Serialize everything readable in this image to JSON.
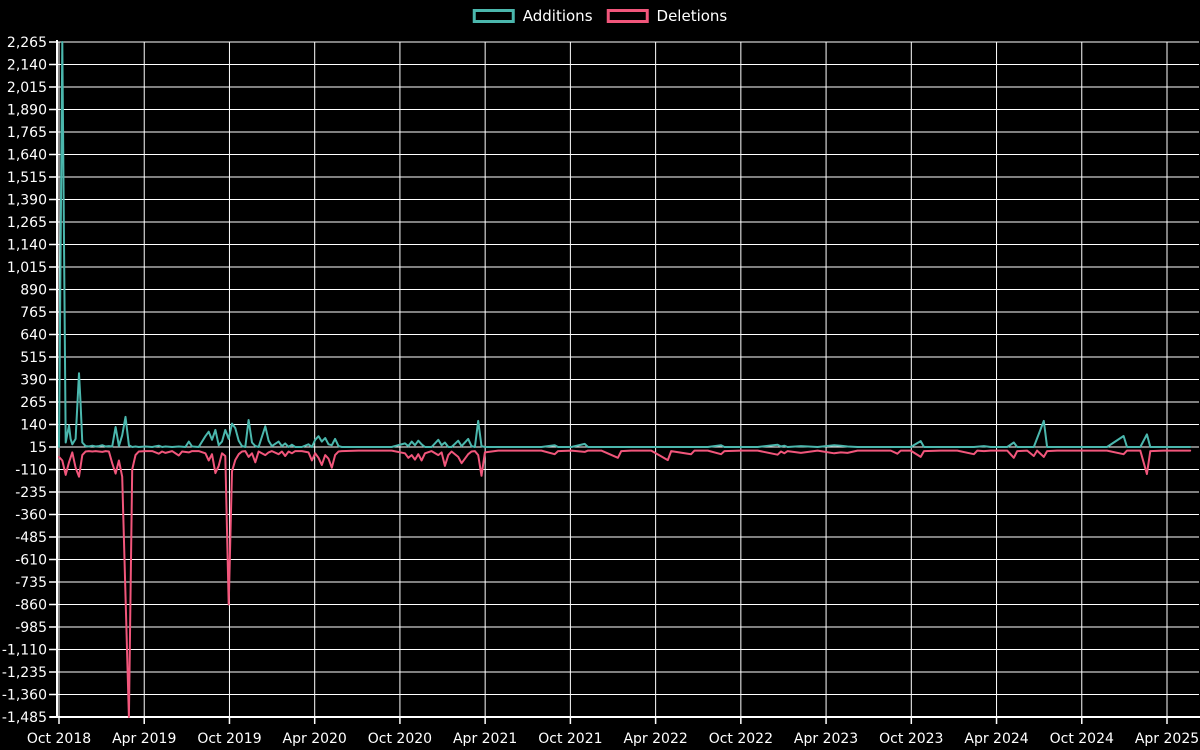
{
  "chart_data": {
    "type": "line",
    "title": "",
    "legend": [
      {
        "label": "Additions",
        "color": "#4bb7ad"
      },
      {
        "label": "Deletions",
        "color": "#f1567b"
      }
    ],
    "legend_position": "top-center",
    "grid": true,
    "background": "#000000",
    "grid_color": "#ffffff",
    "text_color": "#ffffff",
    "x_unit": "week",
    "x_range_weeks": [
      0,
      340
    ],
    "weeks_per_x_tick": 25.62,
    "ylim": [
      -1485,
      2265
    ],
    "y_step": 125,
    "x_tick_labels": [
      "Oct 2018",
      "Apr 2019",
      "Oct 2019",
      "Apr 2020",
      "Oct 2020",
      "Apr 2021",
      "Oct 2021",
      "Apr 2022",
      "Oct 2022",
      "Apr 2023",
      "Oct 2023",
      "Apr 2024",
      "Oct 2024",
      "Apr 2025"
    ],
    "y_tick_labels": [
      "2,265",
      "2,140",
      "2,015",
      "1,890",
      "1,765",
      "1,640",
      "1,515",
      "1,390",
      "1,265",
      "1,140",
      "1,015",
      "890",
      "765",
      "640",
      "515",
      "390",
      "265",
      "140",
      "15",
      "-110",
      "-235",
      "-360",
      "-485",
      "-610",
      "-735",
      "-860",
      "-985",
      "-1,110",
      "-1,235",
      "-1,360",
      "-1,485"
    ],
    "series": [
      {
        "name": "Additions",
        "color": "#4bb7ad",
        "points": [
          [
            0,
            15
          ],
          [
            1,
            2265
          ],
          [
            2,
            40
          ],
          [
            3,
            135
          ],
          [
            3.5,
            60
          ],
          [
            4,
            30
          ],
          [
            5,
            60
          ],
          [
            6,
            425
          ],
          [
            6.5,
            255
          ],
          [
            7,
            40
          ],
          [
            8,
            20
          ],
          [
            9,
            18
          ],
          [
            10,
            22
          ],
          [
            11,
            18
          ],
          [
            12,
            20
          ],
          [
            13,
            25
          ],
          [
            14,
            18
          ],
          [
            15,
            20
          ],
          [
            16,
            18
          ],
          [
            17,
            126
          ],
          [
            18,
            20
          ],
          [
            19,
            80
          ],
          [
            20,
            182
          ],
          [
            21,
            25
          ],
          [
            22,
            15
          ],
          [
            23,
            18
          ],
          [
            24,
            15
          ],
          [
            26,
            18
          ],
          [
            28,
            15
          ],
          [
            30,
            22
          ],
          [
            31,
            15
          ],
          [
            32,
            18
          ],
          [
            34,
            15
          ],
          [
            36,
            18
          ],
          [
            38,
            15
          ],
          [
            39,
            45
          ],
          [
            40,
            18
          ],
          [
            42,
            15
          ],
          [
            44,
            75
          ],
          [
            45,
            100
          ],
          [
            46,
            55
          ],
          [
            47,
            110
          ],
          [
            48,
            25
          ],
          [
            49,
            45
          ],
          [
            50,
            110
          ],
          [
            51,
            60
          ],
          [
            52,
            145
          ],
          [
            53,
            120
          ],
          [
            54,
            50
          ],
          [
            55,
            20
          ],
          [
            56,
            15
          ],
          [
            57,
            165
          ],
          [
            58,
            40
          ],
          [
            59,
            20
          ],
          [
            60,
            15
          ],
          [
            62,
            130
          ],
          [
            63,
            50
          ],
          [
            64,
            20
          ],
          [
            66,
            45
          ],
          [
            67,
            20
          ],
          [
            68,
            35
          ],
          [
            69,
            15
          ],
          [
            70,
            28
          ],
          [
            71,
            15
          ],
          [
            73,
            15
          ],
          [
            75,
            30
          ],
          [
            76,
            15
          ],
          [
            77,
            55
          ],
          [
            78,
            75
          ],
          [
            79,
            45
          ],
          [
            80,
            65
          ],
          [
            81,
            30
          ],
          [
            82,
            25
          ],
          [
            83,
            60
          ],
          [
            84,
            20
          ],
          [
            85,
            15
          ],
          [
            90,
            15
          ],
          [
            95,
            15
          ],
          [
            100,
            15
          ],
          [
            104,
            35
          ],
          [
            105,
            20
          ],
          [
            106,
            45
          ],
          [
            107,
            25
          ],
          [
            108,
            50
          ],
          [
            109,
            30
          ],
          [
            110,
            15
          ],
          [
            112,
            15
          ],
          [
            114,
            55
          ],
          [
            115,
            25
          ],
          [
            116,
            40
          ],
          [
            117,
            15
          ],
          [
            118,
            15
          ],
          [
            120,
            50
          ],
          [
            121,
            20
          ],
          [
            123,
            60
          ],
          [
            124,
            20
          ],
          [
            125,
            15
          ],
          [
            126,
            160
          ],
          [
            127,
            20
          ],
          [
            128,
            15
          ],
          [
            132,
            15
          ],
          [
            140,
            15
          ],
          [
            145,
            15
          ],
          [
            149,
            25
          ],
          [
            150,
            15
          ],
          [
            154,
            15
          ],
          [
            158,
            32
          ],
          [
            159,
            15
          ],
          [
            163,
            15
          ],
          [
            168,
            15
          ],
          [
            172,
            15
          ],
          [
            178,
            15
          ],
          [
            183,
            15
          ],
          [
            190,
            15
          ],
          [
            195,
            15
          ],
          [
            199,
            25
          ],
          [
            200,
            15
          ],
          [
            205,
            15
          ],
          [
            210,
            15
          ],
          [
            216,
            28
          ],
          [
            217,
            18
          ],
          [
            218,
            22
          ],
          [
            219,
            15
          ],
          [
            223,
            20
          ],
          [
            228,
            15
          ],
          [
            233,
            25
          ],
          [
            235,
            22
          ],
          [
            237,
            18
          ],
          [
            240,
            15
          ],
          [
            245,
            15
          ],
          [
            250,
            15
          ],
          [
            252,
            15
          ],
          [
            256,
            15
          ],
          [
            259,
            48
          ],
          [
            260,
            15
          ],
          [
            265,
            15
          ],
          [
            270,
            15
          ],
          [
            275,
            15
          ],
          [
            278,
            20
          ],
          [
            280,
            15
          ],
          [
            285,
            15
          ],
          [
            287,
            40
          ],
          [
            288,
            15
          ],
          [
            291,
            15
          ],
          [
            293,
            15
          ],
          [
            296,
            160
          ],
          [
            297,
            15
          ],
          [
            300,
            15
          ],
          [
            305,
            15
          ],
          [
            310,
            15
          ],
          [
            315,
            15
          ],
          [
            320,
            76
          ],
          [
            321,
            15
          ],
          [
            325,
            15
          ],
          [
            327,
            85
          ],
          [
            328,
            15
          ],
          [
            332,
            15
          ],
          [
            336,
            15
          ],
          [
            340,
            15
          ]
        ]
      },
      {
        "name": "Deletions",
        "color": "#f1567b",
        "points": [
          [
            0,
            -40
          ],
          [
            1,
            -60
          ],
          [
            2,
            -140
          ],
          [
            3,
            -70
          ],
          [
            4,
            -15
          ],
          [
            5,
            -100
          ],
          [
            6,
            -150
          ],
          [
            7,
            -30
          ],
          [
            8,
            -10
          ],
          [
            9,
            -8
          ],
          [
            10,
            -10
          ],
          [
            11,
            -8
          ],
          [
            12,
            -10
          ],
          [
            13,
            -12
          ],
          [
            14,
            -8
          ],
          [
            15,
            -10
          ],
          [
            16,
            -75
          ],
          [
            17,
            -133
          ],
          [
            18,
            -60
          ],
          [
            19,
            -150
          ],
          [
            20,
            -810
          ],
          [
            21,
            -1485
          ],
          [
            22,
            -110
          ],
          [
            23,
            -30
          ],
          [
            24,
            -10
          ],
          [
            26,
            -8
          ],
          [
            28,
            -8
          ],
          [
            30,
            -22
          ],
          [
            31,
            -10
          ],
          [
            32,
            -18
          ],
          [
            34,
            -8
          ],
          [
            36,
            -32
          ],
          [
            37,
            -10
          ],
          [
            39,
            -15
          ],
          [
            40,
            -8
          ],
          [
            42,
            -8
          ],
          [
            44,
            -20
          ],
          [
            45,
            -60
          ],
          [
            46,
            -25
          ],
          [
            47,
            -130
          ],
          [
            48,
            -90
          ],
          [
            49,
            -20
          ],
          [
            50,
            -35
          ],
          [
            51,
            -860
          ],
          [
            52,
            -120
          ],
          [
            53,
            -57
          ],
          [
            54,
            -25
          ],
          [
            55,
            -10
          ],
          [
            56,
            -8
          ],
          [
            57,
            -40
          ],
          [
            58,
            -20
          ],
          [
            59,
            -70
          ],
          [
            60,
            -10
          ],
          [
            62,
            -30
          ],
          [
            63,
            -15
          ],
          [
            64,
            -8
          ],
          [
            66,
            -25
          ],
          [
            67,
            -10
          ],
          [
            68,
            -35
          ],
          [
            69,
            -10
          ],
          [
            70,
            -20
          ],
          [
            71,
            -8
          ],
          [
            73,
            -8
          ],
          [
            75,
            -15
          ],
          [
            76,
            -60
          ],
          [
            77,
            -20
          ],
          [
            78,
            -45
          ],
          [
            79,
            -85
          ],
          [
            80,
            -30
          ],
          [
            81,
            -50
          ],
          [
            82,
            -100
          ],
          [
            83,
            -30
          ],
          [
            84,
            -10
          ],
          [
            85,
            -8
          ],
          [
            90,
            -5
          ],
          [
            95,
            -5
          ],
          [
            100,
            -5
          ],
          [
            104,
            -20
          ],
          [
            105,
            -45
          ],
          [
            106,
            -30
          ],
          [
            107,
            -55
          ],
          [
            108,
            -25
          ],
          [
            109,
            -60
          ],
          [
            110,
            -20
          ],
          [
            112,
            -8
          ],
          [
            114,
            -30
          ],
          [
            115,
            -15
          ],
          [
            116,
            -90
          ],
          [
            117,
            -30
          ],
          [
            118,
            -10
          ],
          [
            120,
            -40
          ],
          [
            121,
            -75
          ],
          [
            123,
            -25
          ],
          [
            124,
            -10
          ],
          [
            125,
            -8
          ],
          [
            126,
            -30
          ],
          [
            127,
            -145
          ],
          [
            128,
            -15
          ],
          [
            132,
            -5
          ],
          [
            140,
            -5
          ],
          [
            145,
            -5
          ],
          [
            149,
            -25
          ],
          [
            150,
            -8
          ],
          [
            154,
            -5
          ],
          [
            158,
            -12
          ],
          [
            159,
            -5
          ],
          [
            163,
            -5
          ],
          [
            168,
            -45
          ],
          [
            169,
            -8
          ],
          [
            172,
            -5
          ],
          [
            178,
            -5
          ],
          [
            183,
            -58
          ],
          [
            184,
            -8
          ],
          [
            190,
            -25
          ],
          [
            191,
            -5
          ],
          [
            195,
            -5
          ],
          [
            199,
            -25
          ],
          [
            200,
            -8
          ],
          [
            205,
            -5
          ],
          [
            210,
            -5
          ],
          [
            216,
            -28
          ],
          [
            217,
            -10
          ],
          [
            218,
            -20
          ],
          [
            219,
            -8
          ],
          [
            223,
            -18
          ],
          [
            228,
            -5
          ],
          [
            233,
            -20
          ],
          [
            235,
            -15
          ],
          [
            237,
            -18
          ],
          [
            240,
            -5
          ],
          [
            245,
            -5
          ],
          [
            250,
            -5
          ],
          [
            252,
            -22
          ],
          [
            253,
            -5
          ],
          [
            256,
            -5
          ],
          [
            259,
            -40
          ],
          [
            260,
            -8
          ],
          [
            265,
            -5
          ],
          [
            270,
            -5
          ],
          [
            275,
            -25
          ],
          [
            276,
            -5
          ],
          [
            278,
            -8
          ],
          [
            280,
            -5
          ],
          [
            285,
            -5
          ],
          [
            287,
            -45
          ],
          [
            288,
            -8
          ],
          [
            291,
            -5
          ],
          [
            293,
            -35
          ],
          [
            294,
            -5
          ],
          [
            296,
            -40
          ],
          [
            297,
            -8
          ],
          [
            300,
            -5
          ],
          [
            305,
            -5
          ],
          [
            310,
            -5
          ],
          [
            315,
            -5
          ],
          [
            320,
            -25
          ],
          [
            321,
            -5
          ],
          [
            325,
            -5
          ],
          [
            327,
            -135
          ],
          [
            328,
            -8
          ],
          [
            332,
            -5
          ],
          [
            336,
            -5
          ],
          [
            340,
            -5
          ]
        ]
      }
    ]
  }
}
